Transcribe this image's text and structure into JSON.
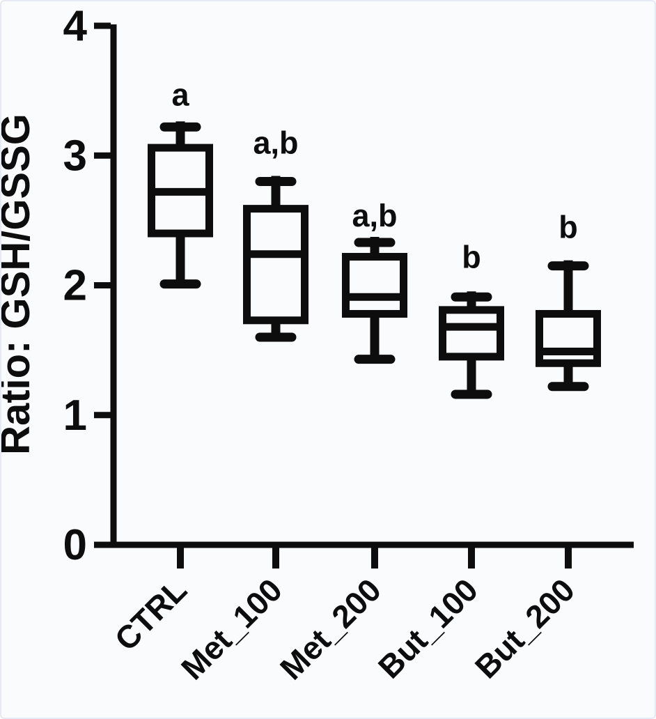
{
  "figure": {
    "background_color": "#fafbfd",
    "ink_color": "#0d0d0d"
  },
  "chart_data": {
    "type": "box",
    "title": "",
    "xlabel": "",
    "ylabel": "Ratio: GSH/GSSG",
    "ylim": [
      0,
      4
    ],
    "yticks": [
      "0",
      "1",
      "2",
      "3",
      "4"
    ],
    "grid": false,
    "legend": false,
    "x_tick_label_rotation_deg": -45,
    "categories": [
      "CTRL",
      "Met_100",
      "Met_200",
      "But_100",
      "But_200"
    ],
    "series": [
      {
        "name": "CTRL",
        "min": 2.01,
        "q1": 2.4,
        "median": 2.72,
        "q3": 3.06,
        "max": 3.22,
        "sig_label": "a",
        "sig_label_y": 3.47
      },
      {
        "name": "Met_100",
        "min": 1.6,
        "q1": 1.73,
        "median": 2.24,
        "q3": 2.59,
        "max": 2.8,
        "sig_label": "a,b",
        "sig_label_y": 3.1
      },
      {
        "name": "Met_200",
        "min": 1.43,
        "q1": 1.78,
        "median": 1.91,
        "q3": 2.22,
        "max": 2.33,
        "sig_label": "a,b",
        "sig_label_y": 2.54
      },
      {
        "name": "But_100",
        "min": 1.16,
        "q1": 1.45,
        "median": 1.68,
        "q3": 1.81,
        "max": 1.91,
        "sig_label": "b",
        "sig_label_y": 2.22
      },
      {
        "name": "But_200",
        "min": 1.22,
        "q1": 1.4,
        "median": 1.49,
        "q3": 1.78,
        "max": 2.15,
        "sig_label": "b",
        "sig_label_y": 2.45
      }
    ]
  }
}
